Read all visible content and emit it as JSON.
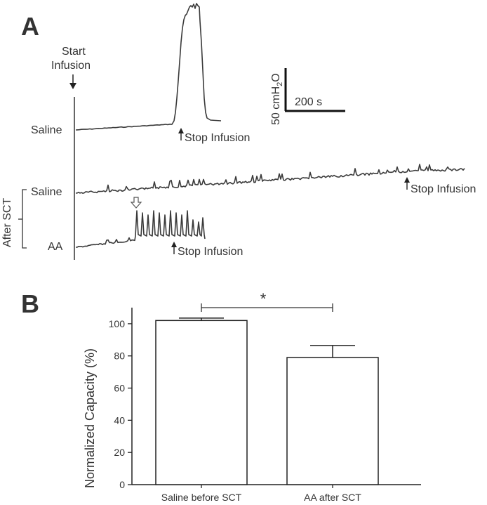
{
  "panel_a": {
    "letter": "A",
    "start_label_1": "Start",
    "start_label_2": "Infusion",
    "trace_labels": [
      "Saline",
      "Saline",
      "AA"
    ],
    "group_label": "After SCT",
    "stop_label": "Stop Infusion",
    "scale_y_label": "50 cmH",
    "scale_y_sub": "2",
    "scale_y_end": "O",
    "scale_x_label": "200 s"
  },
  "panel_b": {
    "letter": "B",
    "significance": "*"
  },
  "chart_data": {
    "type": "bar",
    "categories": [
      "Saline before SCT",
      "AA after SCT"
    ],
    "values": [
      102,
      79
    ],
    "error": [
      1.5,
      7.5
    ],
    "ylabel": "Normalized Capacity (%)",
    "xlabel": "",
    "ylim": [
      0,
      110
    ],
    "yticks": [
      0,
      20,
      40,
      60,
      80,
      100
    ],
    "bar_color": "#ffffff",
    "edge_color": "#222222"
  }
}
